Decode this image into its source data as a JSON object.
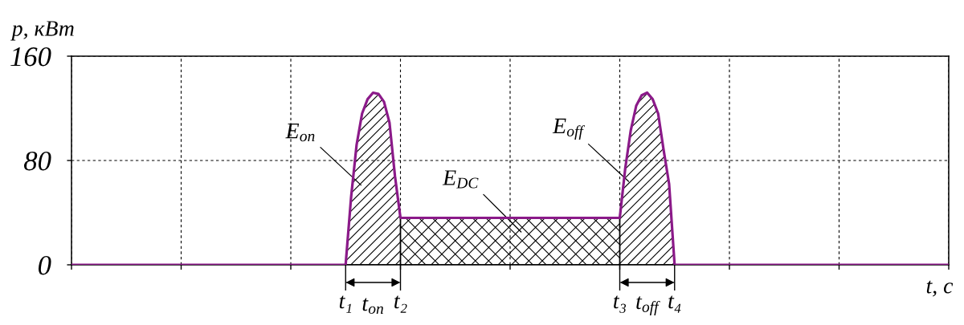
{
  "chart_data": {
    "type": "line",
    "xlabel": "t, с",
    "ylabel": "p, кВт",
    "categories": [
      null,
      null,
      null,
      null,
      null,
      null,
      null,
      null,
      null,
      null,
      null,
      null,
      null,
      null,
      null,
      null,
      null,
      null,
      null,
      null,
      null,
      null,
      null,
      null,
      null,
      null,
      null,
      null,
      null,
      null,
      null,
      null,
      null,
      null,
      null,
      null,
      null,
      null,
      null,
      null,
      null,
      null,
      null,
      null,
      null,
      null,
      null,
      null,
      null,
      null,
      "t₁",
      null,
      null,
      null,
      null,
      null,
      null,
      null,
      null,
      null,
      "t₂",
      null,
      null,
      null,
      null,
      null,
      null,
      null,
      null,
      null,
      null,
      null,
      null,
      null,
      null,
      null,
      null,
      null,
      null,
      null,
      null,
      null,
      null,
      null,
      null,
      null,
      null,
      null,
      null,
      null,
      null,
      null,
      null,
      null,
      null,
      null,
      null,
      null,
      null,
      null,
      "t₃",
      null,
      null,
      null,
      null,
      null,
      null,
      null,
      null,
      null,
      "t₄",
      null,
      null,
      null,
      null,
      null,
      null,
      null,
      null,
      null,
      null,
      null,
      null,
      null,
      null,
      null,
      null,
      null,
      null,
      null,
      null,
      null,
      null,
      null,
      null,
      null,
      null,
      null,
      null,
      null,
      null,
      null,
      null,
      null,
      null,
      null,
      null,
      null,
      null,
      null,
      null,
      null,
      null,
      null,
      null,
      null,
      null,
      null,
      null,
      null,
      null
    ],
    "ylim": [
      0,
      160
    ],
    "yticks": [
      0,
      80,
      160
    ],
    "grid": true,
    "series": [
      {
        "color": "#8b1a89",
        "values": [
          0,
          0,
          0,
          0,
          0,
          0,
          0,
          0,
          0,
          0,
          0,
          0,
          0,
          0,
          0,
          0,
          0,
          0,
          0,
          0,
          0,
          0,
          0,
          0,
          0,
          0,
          0,
          0,
          0,
          0,
          0,
          0,
          0,
          0,
          0,
          0,
          0,
          0,
          0,
          0,
          0,
          0,
          0,
          0,
          0,
          0,
          0,
          0,
          0,
          0,
          0,
          52,
          92,
          116,
          127,
          132,
          131,
          125,
          109,
          68,
          36,
          36,
          36,
          36,
          36,
          36,
          36,
          36,
          36,
          36,
          36,
          36,
          36,
          36,
          36,
          36,
          36,
          36,
          36,
          36,
          36,
          36,
          36,
          36,
          36,
          36,
          36,
          36,
          36,
          36,
          36,
          36,
          36,
          36,
          36,
          36,
          36,
          36,
          36,
          36,
          36,
          74,
          103,
          122,
          130,
          132,
          127,
          116,
          88,
          62,
          0,
          0,
          0,
          0,
          0,
          0,
          0,
          0,
          0,
          0,
          0,
          0,
          0,
          0,
          0,
          0,
          0,
          0,
          0,
          0,
          0,
          0,
          0,
          0,
          0,
          0,
          0,
          0,
          0,
          0,
          0,
          0,
          0,
          0,
          0,
          0,
          0,
          0,
          0,
          0,
          0,
          0,
          0,
          0,
          0,
          0,
          0,
          0,
          0,
          0,
          0
        ]
      },
      {
        "type": "area",
        "name": "E$_{on}$",
        "color": "#000000",
        "values": [
          null,
          null,
          null,
          null,
          null,
          null,
          null,
          null,
          null,
          null,
          null,
          null,
          null,
          null,
          null,
          null,
          null,
          null,
          null,
          null,
          null,
          null,
          null,
          null,
          null,
          null,
          null,
          null,
          null,
          null,
          null,
          null,
          null,
          null,
          null,
          null,
          null,
          null,
          null,
          null,
          null,
          null,
          null,
          null,
          null,
          null,
          null,
          null,
          null,
          null,
          0,
          52,
          92,
          116,
          127,
          132,
          131,
          125,
          109,
          68,
          36,
          null,
          null,
          null,
          null,
          null,
          null,
          null,
          null,
          null,
          null,
          null,
          null,
          null,
          null,
          null,
          null,
          null,
          null,
          null,
          null,
          null,
          null,
          null,
          null,
          null,
          null,
          null,
          null,
          null,
          null,
          null,
          null,
          null,
          null,
          null,
          null,
          null,
          null,
          null,
          null,
          null,
          null,
          null,
          null,
          null,
          null,
          null,
          null,
          null,
          null,
          null,
          null,
          null,
          null,
          null,
          null,
          null,
          null,
          null,
          null,
          null,
          null,
          null,
          null,
          null,
          null,
          null,
          null,
          null,
          null,
          null,
          null,
          null,
          null,
          null,
          null,
          null,
          null,
          null,
          null,
          null,
          null,
          null,
          null,
          null,
          null,
          null,
          null,
          null,
          null,
          null,
          null,
          null,
          null,
          null,
          null,
          null,
          null,
          null,
          null
        ]
      },
      {
        "type": "area",
        "name": "E$_{DC}$",
        "color": "#000000",
        "values": [
          null,
          null,
          null,
          null,
          null,
          null,
          null,
          null,
          null,
          null,
          null,
          null,
          null,
          null,
          null,
          null,
          null,
          null,
          null,
          null,
          null,
          null,
          null,
          null,
          null,
          null,
          null,
          null,
          null,
          null,
          null,
          null,
          null,
          null,
          null,
          null,
          null,
          null,
          null,
          null,
          null,
          null,
          null,
          null,
          null,
          null,
          null,
          null,
          null,
          null,
          null,
          null,
          null,
          null,
          null,
          null,
          null,
          null,
          null,
          null,
          36,
          36,
          36,
          36,
          36,
          36,
          36,
          36,
          36,
          36,
          36,
          36,
          36,
          36,
          36,
          36,
          36,
          36,
          36,
          36,
          36,
          36,
          36,
          36,
          36,
          36,
          36,
          36,
          36,
          36,
          36,
          36,
          36,
          36,
          36,
          36,
          36,
          36,
          36,
          36,
          36,
          null,
          null,
          null,
          null,
          null,
          null,
          null,
          null,
          null,
          null,
          null,
          null,
          null,
          null,
          null,
          null,
          null,
          null,
          null,
          null,
          null,
          null,
          null,
          null,
          null,
          null,
          null,
          null,
          null,
          null,
          null,
          null,
          null,
          null,
          null,
          null,
          null,
          null,
          null,
          null,
          null,
          null,
          null,
          null,
          null,
          null,
          null,
          null,
          null,
          null,
          null,
          null,
          null,
          null,
          null,
          null,
          null,
          null,
          null,
          null
        ]
      },
      {
        "type": "area",
        "name": "E$_{off}$",
        "color": "#000000",
        "values": [
          null,
          null,
          null,
          null,
          null,
          null,
          null,
          null,
          null,
          null,
          null,
          null,
          null,
          null,
          null,
          null,
          null,
          null,
          null,
          null,
          null,
          null,
          null,
          null,
          null,
          null,
          null,
          null,
          null,
          null,
          null,
          null,
          null,
          null,
          null,
          null,
          null,
          null,
          null,
          null,
          null,
          null,
          null,
          null,
          null,
          null,
          null,
          null,
          null,
          null,
          null,
          null,
          null,
          null,
          null,
          null,
          null,
          null,
          null,
          null,
          null,
          null,
          null,
          null,
          null,
          null,
          null,
          null,
          null,
          null,
          null,
          null,
          null,
          null,
          null,
          null,
          null,
          null,
          null,
          null,
          null,
          null,
          null,
          null,
          null,
          null,
          null,
          null,
          null,
          null,
          null,
          null,
          null,
          null,
          null,
          null,
          null,
          null,
          null,
          null,
          36,
          74,
          103,
          122,
          130,
          132,
          127,
          116,
          88,
          62,
          0,
          null,
          null,
          null,
          null,
          null,
          null,
          null,
          null,
          null,
          null,
          null,
          null,
          null,
          null,
          null,
          null,
          null,
          null,
          null,
          null,
          null,
          null,
          null,
          null,
          null,
          null,
          null,
          null,
          null,
          null,
          null,
          null,
          null,
          null,
          null,
          null,
          null,
          null,
          null,
          null,
          null,
          null,
          null,
          null,
          null,
          null,
          null,
          null,
          null,
          null
        ]
      }
    ],
    "annotations": [
      "t$_{on}$",
      "t$_{off}$"
    ]
  }
}
